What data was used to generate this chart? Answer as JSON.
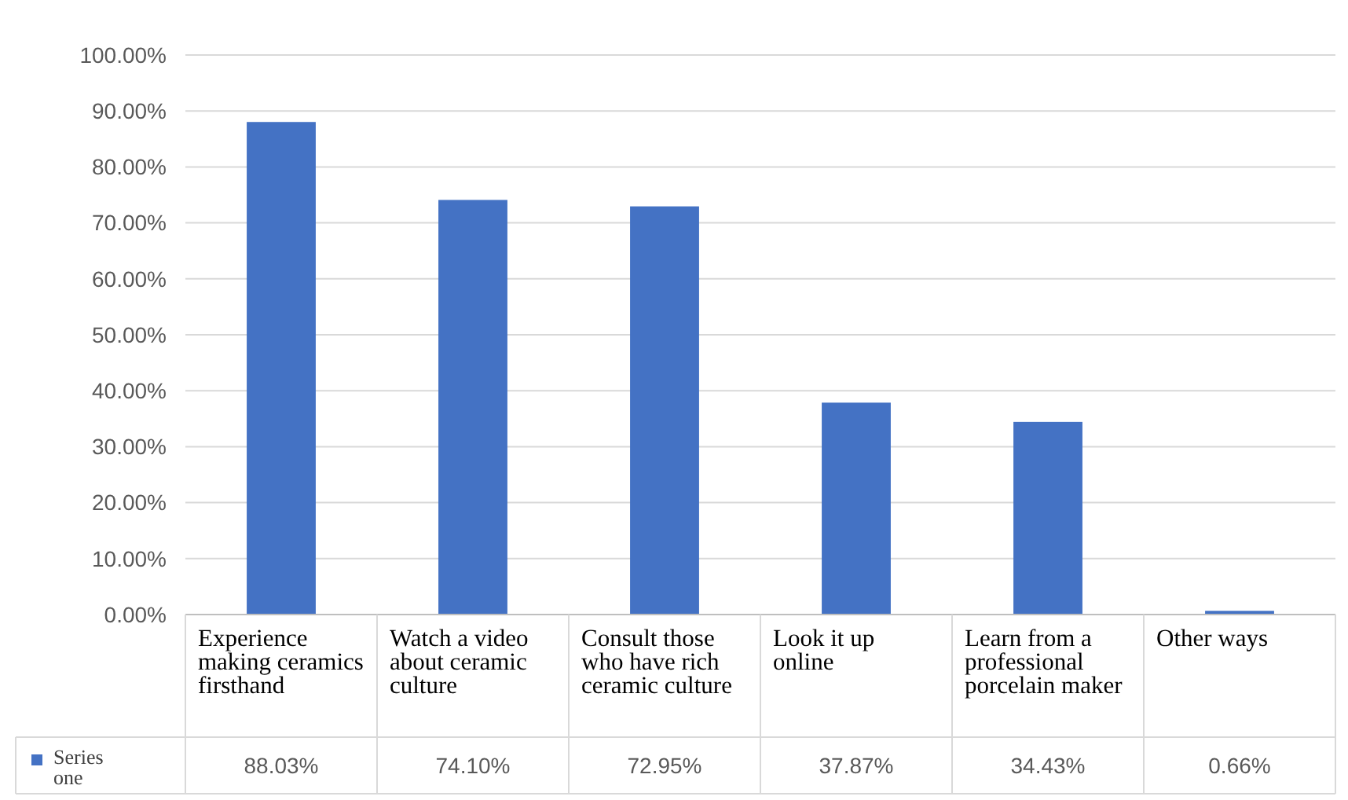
{
  "chart_data": {
    "type": "bar",
    "categories": [
      "Experience making ceramics firsthand",
      "Watch a video about ceramic culture",
      "Consult those who have rich ceramic culture",
      "Look it up online",
      "Learn from a professional porcelain maker",
      "Other ways"
    ],
    "series": [
      {
        "name": "Series one",
        "color": "#4472c4",
        "values": [
          88.03,
          74.1,
          72.95,
          37.87,
          34.43,
          0.66
        ],
        "value_labels": [
          "88.03%",
          "74.10%",
          "72.95%",
          "37.87%",
          "34.43%",
          "0.66%"
        ]
      }
    ],
    "ylim": [
      0,
      100
    ],
    "yticks": [
      {
        "value": 0,
        "label": "0.00%"
      },
      {
        "value": 10,
        "label": "10.00%"
      },
      {
        "value": 20,
        "label": "20.00%"
      },
      {
        "value": 30,
        "label": "30.00%"
      },
      {
        "value": 40,
        "label": "40.00%"
      },
      {
        "value": 50,
        "label": "50.00%"
      },
      {
        "value": 60,
        "label": "60.00%"
      },
      {
        "value": 70,
        "label": "70.00%"
      },
      {
        "value": 80,
        "label": "80.00%"
      },
      {
        "value": 90,
        "label": "90.00%"
      },
      {
        "value": 100,
        "label": "100.00%"
      }
    ],
    "grid": "y",
    "legend": "bottom left"
  }
}
